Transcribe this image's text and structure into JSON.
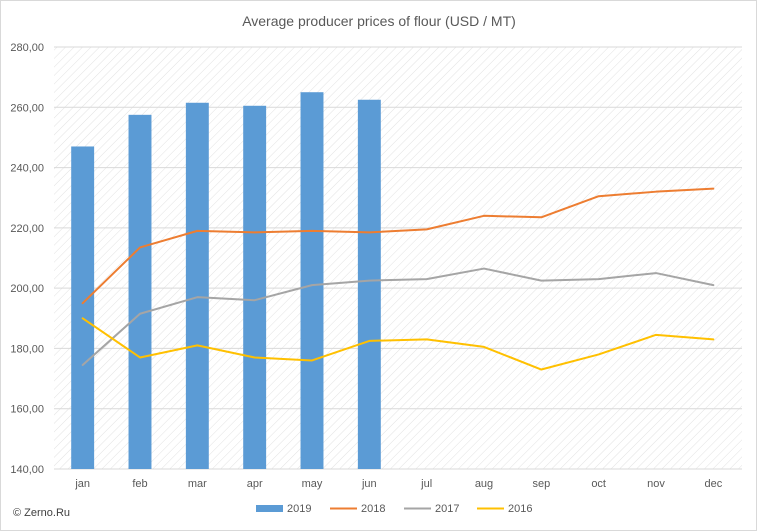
{
  "chart_data": {
    "type": "bar",
    "title": "Average producer prices of flour (USD / MT)",
    "categories": [
      "jan",
      "feb",
      "mar",
      "apr",
      "may",
      "jun",
      "jul",
      "aug",
      "sep",
      "oct",
      "nov",
      "dec"
    ],
    "ylim": [
      140,
      280
    ],
    "yticks": [
      "140,00",
      "160,00",
      "180,00",
      "200,00",
      "220,00",
      "240,00",
      "260,00",
      "280,00"
    ],
    "grid": true,
    "legend_position": "bottom",
    "series": [
      {
        "name": "2019",
        "type": "bar",
        "color": "#5b9bd5",
        "values": [
          247,
          257.5,
          261.5,
          260.5,
          265,
          262.5,
          null,
          null,
          null,
          null,
          null,
          null
        ]
      },
      {
        "name": "2018",
        "type": "line",
        "color": "#ed7d31",
        "values": [
          195,
          213.5,
          219,
          218.5,
          219,
          218.5,
          219.5,
          224,
          223.5,
          230.5,
          232,
          233
        ]
      },
      {
        "name": "2017",
        "type": "line",
        "color": "#a5a5a5",
        "values": [
          174.5,
          191.5,
          197,
          196,
          201,
          202.5,
          203,
          206.5,
          202.5,
          203,
          205,
          201
        ]
      },
      {
        "name": "2016",
        "type": "line",
        "color": "#ffc000",
        "values": [
          190,
          177,
          181,
          177,
          176,
          182.5,
          183,
          180.5,
          173,
          178,
          184.5,
          183
        ]
      }
    ]
  },
  "footer": {
    "copyright": "© Zerno.Ru"
  }
}
